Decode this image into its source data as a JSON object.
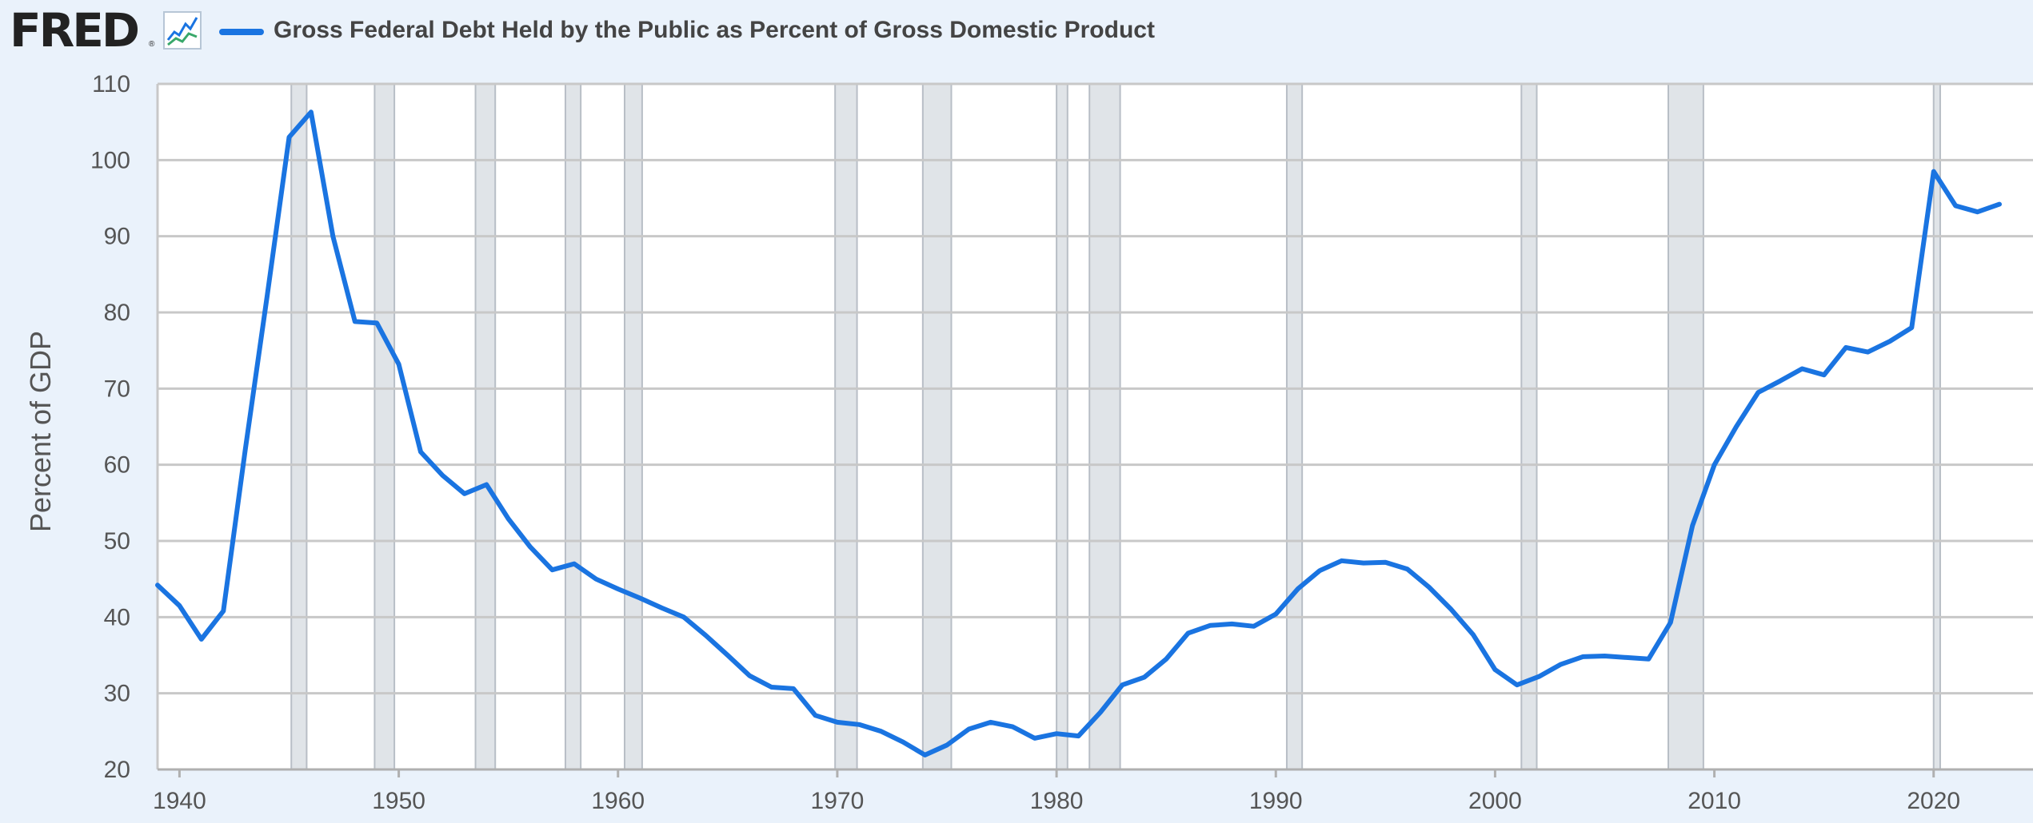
{
  "header": {
    "logo_text": "FRED",
    "logo_mark": "®",
    "chart_icon": "line-chart-icon"
  },
  "colors": {
    "background": "#eaf2fb",
    "plot_bg": "#ffffff",
    "series": "#1a74e1",
    "grid": "#c8c8c8",
    "recession": "#e0e4e8"
  },
  "chart_data": {
    "type": "line",
    "title": "Gross Federal Debt Held by the Public as Percent of Gross Domestic Product",
    "xlabel": "",
    "ylabel": "Percent of GDP",
    "xlim": [
      1939,
      2023
    ],
    "ylim": [
      20,
      110
    ],
    "grid": true,
    "legend_position": "top",
    "x_ticks": [
      1940,
      1950,
      1960,
      1970,
      1980,
      1990,
      2000,
      2010,
      2020
    ],
    "y_ticks": [
      20,
      30,
      40,
      50,
      60,
      70,
      80,
      90,
      100,
      110
    ],
    "recessions": [
      [
        1945.1,
        1945.8
      ],
      [
        1948.9,
        1949.8
      ],
      [
        1953.5,
        1954.4
      ],
      [
        1957.6,
        1958.3
      ],
      [
        1960.3,
        1961.1
      ],
      [
        1969.9,
        1970.9
      ],
      [
        1973.9,
        1975.2
      ],
      [
        1980.0,
        1980.5
      ],
      [
        1981.5,
        1982.9
      ],
      [
        1990.5,
        1991.2
      ],
      [
        2001.2,
        2001.9
      ],
      [
        2007.9,
        2009.5
      ],
      [
        2020.0,
        2020.3
      ]
    ],
    "series": [
      {
        "name": "Gross Federal Debt Held by the Public as Percent of Gross Domestic Product",
        "x": [
          1939,
          1940,
          1941,
          1942,
          1943,
          1944,
          1945,
          1946,
          1947,
          1948,
          1949,
          1950,
          1951,
          1952,
          1953,
          1954,
          1955,
          1956,
          1957,
          1958,
          1959,
          1960,
          1961,
          1962,
          1963,
          1964,
          1965,
          1966,
          1967,
          1968,
          1969,
          1970,
          1971,
          1972,
          1973,
          1974,
          1975,
          1976,
          1977,
          1978,
          1979,
          1980,
          1981,
          1982,
          1983,
          1984,
          1985,
          1986,
          1987,
          1988,
          1989,
          1990,
          1991,
          1992,
          1993,
          1994,
          1995,
          1996,
          1997,
          1998,
          1999,
          2000,
          2001,
          2002,
          2003,
          2004,
          2005,
          2006,
          2007,
          2008,
          2009,
          2010,
          2011,
          2012,
          2013,
          2014,
          2015,
          2016,
          2017,
          2018,
          2019,
          2020,
          2021,
          2022,
          2023
        ],
        "values": [
          44.2,
          41.5,
          37.1,
          40.8,
          62.0,
          82.2,
          103.0,
          106.3,
          90.0,
          78.8,
          78.6,
          73.2,
          61.7,
          58.6,
          56.2,
          57.4,
          52.9,
          49.2,
          46.2,
          47.0,
          45.0,
          43.7,
          42.5,
          41.2,
          40.0,
          37.6,
          35.0,
          32.3,
          30.8,
          30.6,
          27.1,
          26.2,
          25.9,
          25.0,
          23.6,
          21.9,
          23.2,
          25.3,
          26.2,
          25.6,
          24.1,
          24.7,
          24.4,
          27.5,
          31.1,
          32.1,
          34.5,
          37.9,
          38.9,
          39.1,
          38.8,
          40.4,
          43.7,
          46.1,
          47.4,
          47.1,
          47.2,
          46.3,
          43.9,
          41.0,
          37.7,
          33.1,
          31.1,
          32.2,
          33.8,
          34.8,
          34.9,
          34.7,
          34.5,
          39.3,
          52.0,
          60.0,
          65.0,
          69.5,
          71.0,
          72.6,
          71.8,
          75.4,
          74.8,
          76.2,
          78.0,
          98.5,
          94.0,
          93.2,
          94.2
        ]
      }
    ]
  }
}
